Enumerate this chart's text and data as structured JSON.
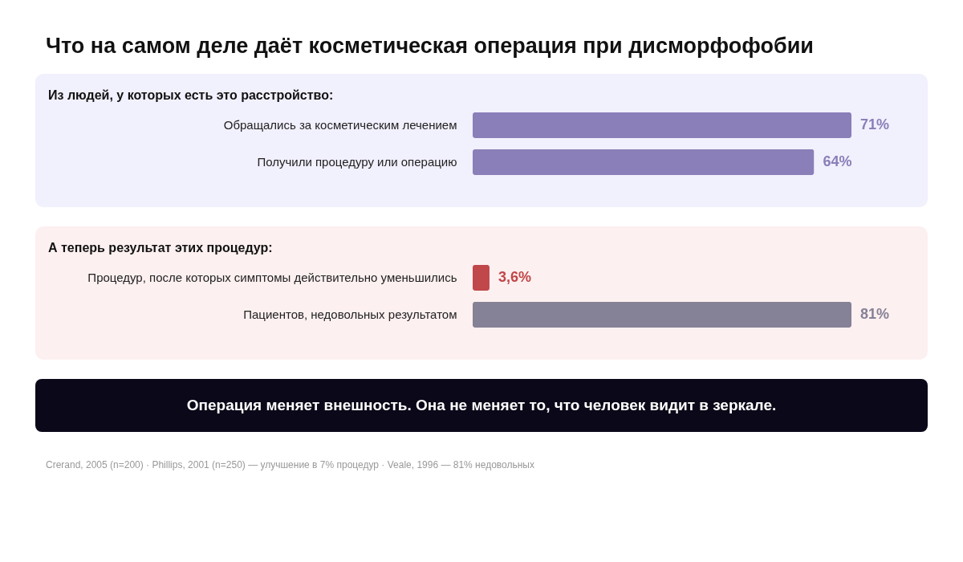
{
  "chart_data": [
    {
      "type": "bar",
      "orientation": "horizontal",
      "title": "Что на самом деле даёт косметическая операция при дисморфофобии",
      "subtitle": "Из людей, у которых есть это расстройство:",
      "categories": [
        "Обращались за косметическим лечением",
        "Получили процедуру или операцию"
      ],
      "values": [
        71,
        64
      ],
      "colors": [
        "#8a7fb8",
        "#8a7fb8"
      ],
      "value_labels": [
        "71%",
        "64%"
      ],
      "tick_labels": "y"
    },
    {
      "type": "bar",
      "orientation": "horizontal",
      "subtitle": "А теперь результат этих процедур:",
      "categories": [
        "Процедур, после которых симптомы действительно уменьшились",
        "Пациентов, недовольных результатом"
      ],
      "values": [
        3.6,
        81
      ],
      "colors": [
        "#c0474a",
        "#858196"
      ],
      "value_labels": [
        "3,6%",
        "81%"
      ],
      "tick_labels": "y",
      "annotations": [
        "Операция меняет внешность. Она не меняет то, что человек видит в зеркале.",
        "Crerand, 2005 (n=200) · Phillips, 2001 (n=250) — улучшение в 7% процедур · Veale, 1996 — 81% недовольных"
      ]
    }
  ]
}
